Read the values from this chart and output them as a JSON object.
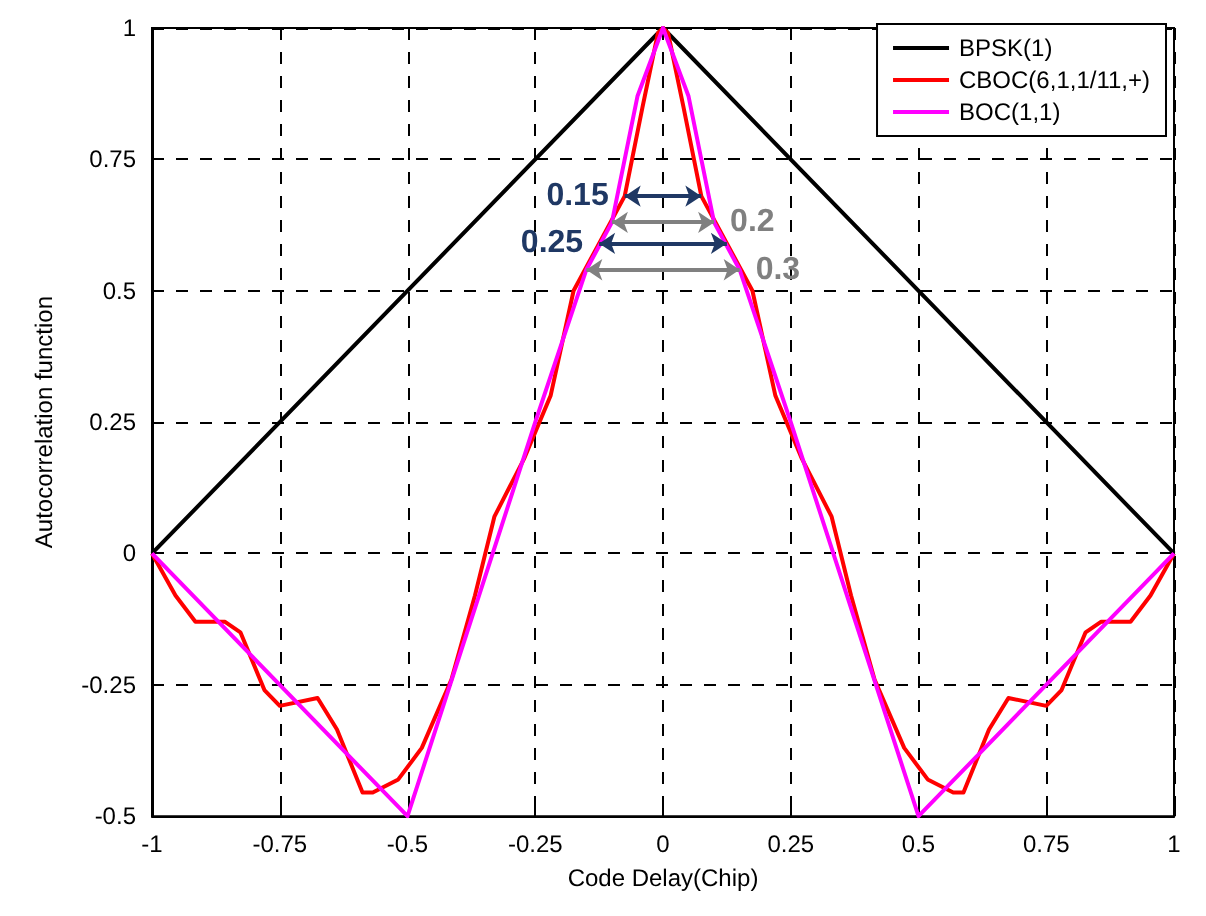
{
  "chart_data": {
    "type": "line",
    "xlabel": "Code Delay(Chip)",
    "ylabel": "Autocorrelation function",
    "xlim": [
      -1,
      1
    ],
    "xticks": [
      -1,
      -0.75,
      -0.5,
      -0.25,
      0,
      0.25,
      0.5,
      0.75,
      1
    ],
    "ylim": [
      -0.5,
      1
    ],
    "yticks": [
      -0.5,
      -0.25,
      0,
      0.25,
      0.5,
      0.75,
      1
    ],
    "grid": true,
    "legend": "top right",
    "line_style": "solid",
    "marker": "none",
    "series": [
      {
        "name": "BPSK(1)",
        "color": "#000000",
        "x": [
          -1,
          0,
          1
        ],
        "values": [
          0,
          1,
          0
        ]
      },
      {
        "name": "CBOC(6,1,1/11,+)",
        "color": "#ff0000",
        "x": [
          -1,
          -0.954,
          -0.915,
          -0.857,
          -0.827,
          -0.78,
          -0.75,
          -0.676,
          -0.638,
          -0.588,
          -0.568,
          -0.518,
          -0.472,
          -0.414,
          -0.368,
          -0.33,
          -0.272,
          -0.22,
          -0.175,
          -0.125,
          -0.075,
          -0.04,
          -0.01,
          0,
          0.01,
          0.04,
          0.075,
          0.125,
          0.175,
          0.22,
          0.272,
          0.33,
          0.368,
          0.414,
          0.472,
          0.518,
          0.568,
          0.588,
          0.638,
          0.676,
          0.75,
          0.78,
          0.827,
          0.857,
          0.915,
          0.954,
          1
        ],
        "values": [
          0,
          -0.08,
          -0.13,
          -0.13,
          -0.15,
          -0.26,
          -0.29,
          -0.275,
          -0.335,
          -0.455,
          -0.455,
          -0.43,
          -0.37,
          -0.24,
          -0.08,
          0.07,
          0.18,
          0.3,
          0.5,
          0.59,
          0.68,
          0.85,
          0.99,
          1,
          0.99,
          0.85,
          0.68,
          0.59,
          0.5,
          0.3,
          0.18,
          0.07,
          -0.08,
          -0.24,
          -0.37,
          -0.43,
          -0.455,
          -0.455,
          -0.335,
          -0.275,
          -0.29,
          -0.26,
          -0.15,
          -0.13,
          -0.13,
          -0.08,
          0
        ]
      },
      {
        "name": "BOC(1,1)",
        "color": "#ff00ff",
        "x": [
          -1,
          -0.5,
          -0.25,
          -0.15,
          -0.1,
          -0.075,
          -0.05,
          0,
          0.05,
          0.075,
          0.1,
          0.15,
          0.25,
          0.5,
          1
        ],
        "values": [
          0,
          -0.5,
          0.25,
          0.54,
          0.63,
          0.75,
          0.87,
          1,
          0.87,
          0.75,
          0.63,
          0.54,
          0.25,
          -0.5,
          0
        ]
      }
    ],
    "annotations": [
      {
        "text": "0.15",
        "x": -0.075,
        "y": 0.68
      },
      {
        "text": "0.2",
        "x": -0.1,
        "y": 0.63
      },
      {
        "text": "0.25",
        "x": -0.125,
        "y": 0.59
      },
      {
        "text": "0.3",
        "x": -0.15,
        "y": 0.54
      }
    ]
  }
}
